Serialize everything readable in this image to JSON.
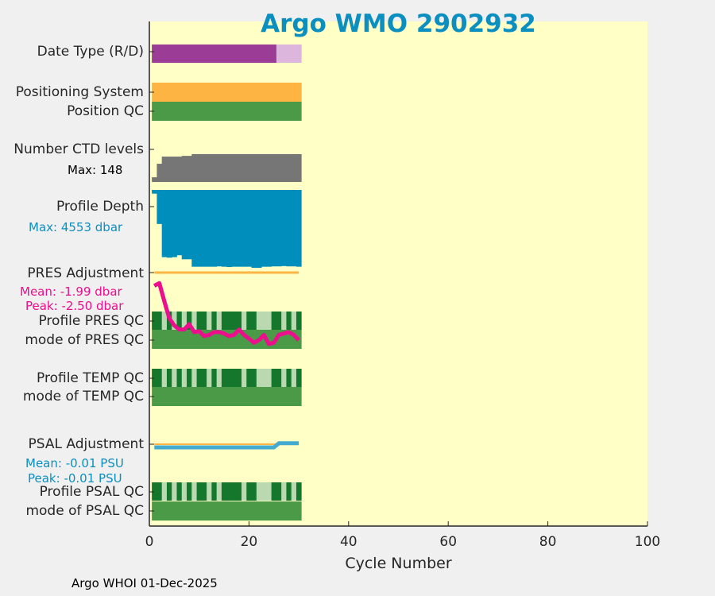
{
  "chart_data": {
    "type": "table",
    "title": "Argo WMO 2902932",
    "xlabel": "Cycle Number",
    "xlim": [
      0,
      100
    ],
    "xticks": [
      0,
      20,
      40,
      60,
      80,
      100
    ],
    "cycles": [
      1,
      2,
      3,
      4,
      5,
      6,
      7,
      8,
      9,
      10,
      11,
      12,
      13,
      14,
      15,
      16,
      17,
      18,
      19,
      20,
      21,
      22,
      23,
      24,
      25,
      26,
      27,
      28,
      29,
      30
    ],
    "rows": {
      "date_type": {
        "label": "Date Type (R/D)",
        "values": [
          "D",
          "D",
          "D",
          "D",
          "D",
          "D",
          "D",
          "D",
          "D",
          "D",
          "D",
          "D",
          "D",
          "D",
          "D",
          "D",
          "D",
          "D",
          "D",
          "D",
          "D",
          "D",
          "D",
          "D",
          "D",
          "R",
          "R",
          "R",
          "R",
          "R"
        ]
      },
      "positioning_system": {
        "label": "Positioning System"
      },
      "position_qc": {
        "label": "Position QC"
      },
      "ctd_levels": {
        "label": "Number CTD levels",
        "max_text": "Max: 148",
        "max": 148,
        "values": [
          25,
          97,
          135,
          135,
          135,
          135,
          139,
          139,
          148,
          148,
          148,
          148,
          148,
          148,
          148,
          148,
          148,
          148,
          148,
          148,
          148,
          148,
          148,
          148,
          148,
          148,
          148,
          148,
          148,
          148
        ]
      },
      "profile_depth": {
        "label": "Profile Depth",
        "max_text": "Max: 4553 dbar",
        "max": 4553,
        "values": [
          218,
          1990,
          3930,
          3960,
          3930,
          3820,
          4055,
          4055,
          4490,
          4490,
          4490,
          4490,
          4490,
          4470,
          4490,
          4510,
          4490,
          4490,
          4490,
          4490,
          4553,
          4553,
          4490,
          4490,
          4470,
          4470,
          4450,
          4470,
          4470,
          4490
        ]
      },
      "pres_adjustment": {
        "label": "PRES Adjustment",
        "mean_text": "Mean: -1.99 dbar",
        "peak_text": "Peak: -2.50 dbar",
        "values": [
          -0.46,
          -0.37,
          -1.0,
          -1.6,
          -1.85,
          -1.99,
          -1.99,
          -1.8,
          -2.08,
          -2.05,
          -2.22,
          -2.18,
          -2.08,
          -2.08,
          -2.13,
          -2.22,
          -2.18,
          -1.99,
          -2.18,
          -2.31,
          -2.45,
          -2.36,
          -2.18,
          -2.5,
          -2.45,
          -2.18,
          -2.13,
          -2.08,
          -2.18,
          -2.36
        ]
      },
      "profile_pres_qc": {
        "label": "Profile PRES QC",
        "light_cycles": [
          3,
          5,
          7,
          9,
          12,
          14,
          19,
          22,
          23,
          24,
          27,
          29
        ]
      },
      "mode_pres_qc": {
        "label": "mode of PRES QC"
      },
      "profile_temp_qc": {
        "label": "Profile TEMP QC",
        "light_cycles": [
          3,
          5,
          7,
          9,
          12,
          14,
          19,
          22,
          23,
          24,
          27,
          29
        ]
      },
      "mode_temp_qc": {
        "label": "mode of TEMP QC"
      },
      "psal_adjustment": {
        "label": "PSAL Adjustment",
        "mean_text": "Mean: -0.01 PSU",
        "peak_text": "Peak: -0.01 PSU",
        "values": [
          -0.01,
          -0.01,
          -0.01,
          -0.01,
          -0.01,
          -0.01,
          -0.01,
          -0.01,
          -0.01,
          -0.01,
          -0.01,
          -0.01,
          -0.01,
          -0.01,
          -0.01,
          -0.01,
          -0.01,
          -0.01,
          -0.01,
          -0.01,
          -0.01,
          -0.01,
          -0.01,
          -0.01,
          -0.01,
          0.003,
          0.003,
          0.003,
          0.003,
          0.003
        ]
      },
      "profile_psal_qc": {
        "label": "Profile PSAL QC",
        "light_cycles": [
          3,
          5,
          7,
          9,
          12,
          14,
          19,
          22,
          23,
          24,
          27,
          29
        ]
      },
      "mode_psal_qc": {
        "label": "mode of PSAL QC"
      }
    }
  },
  "footer": "Argo WHOI 01-Dec-2025",
  "colors": {
    "bg": "#ffffc6",
    "purple": "#9b3d96",
    "light_purple": "#dcb6dc",
    "orange": "#fdb443",
    "green": "#4a9a48",
    "dark_green": "#14772b",
    "light_green": "#bbd9b0",
    "gray": "#767676",
    "blue": "#008fbd",
    "pink": "#ec0e8c",
    "psal": "#43abd0"
  }
}
